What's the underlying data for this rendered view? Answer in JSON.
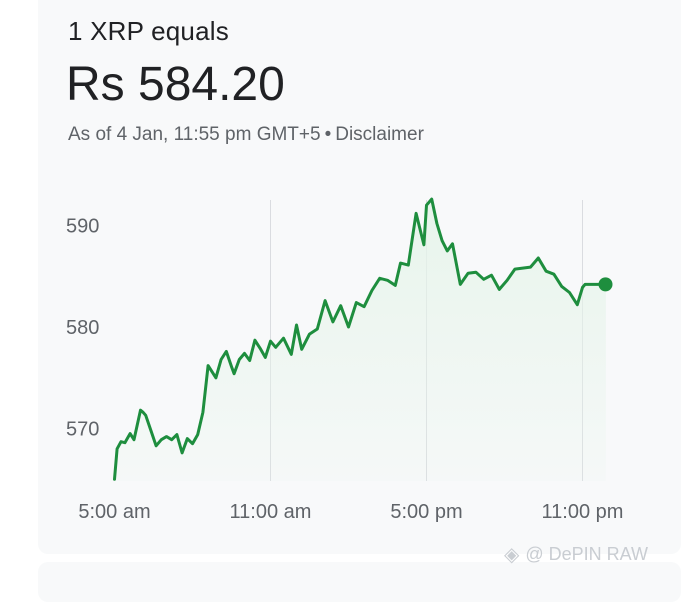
{
  "header": {
    "label": "1 XRP equals"
  },
  "price": {
    "value": "Rs 584.20"
  },
  "asof": {
    "text": "As of 4 Jan, 11:55 pm GMT+5",
    "separator": "•",
    "disclaimer": "Disclaimer"
  },
  "watermark": {
    "icon": "binance-logo-icon",
    "text": "@ DePIN RAW"
  },
  "colors": {
    "line": "#1e8e3e",
    "fill": "#e6f4ea",
    "grid": "#dadce0",
    "text": "#5f6368"
  },
  "chart_data": {
    "type": "line",
    "title": "",
    "xlabel": "",
    "ylabel": "",
    "x_ticks": [
      "5:00 am",
      "11:00 am",
      "5:00 pm",
      "11:00 pm"
    ],
    "y_ticks": [
      570,
      580,
      590
    ],
    "ylim": [
      564.9,
      592.8
    ],
    "x_range_hours": [
      5,
      23.9
    ],
    "series": [
      {
        "x": [
          5.0,
          5.1,
          5.25,
          5.4,
          5.6,
          5.75,
          6.0,
          6.1,
          6.2,
          6.4,
          6.6,
          6.8,
          7.0,
          7.2,
          7.4,
          7.6,
          7.8,
          8.0,
          8.2,
          8.4,
          8.6,
          8.9,
          9.1,
          9.3,
          9.5,
          9.6,
          9.8,
          10.0,
          10.2,
          10.4,
          10.6,
          10.8,
          11.0,
          11.2,
          11.5,
          11.8,
          12.0,
          12.2,
          12.5,
          12.8,
          13.1,
          13.4,
          13.7,
          14.0,
          14.3,
          14.6,
          14.9,
          15.2,
          15.5,
          15.8,
          16.0,
          16.3,
          16.6,
          16.9,
          17.0,
          17.2,
          17.4,
          17.6,
          17.8,
          18.0,
          18.3,
          18.6,
          18.9,
          19.2,
          19.5,
          19.8,
          20.1,
          20.4,
          20.7,
          21.0,
          21.3,
          21.6,
          21.9,
          22.2,
          22.5,
          22.8,
          23.0,
          23.1,
          23.25,
          23.4,
          23.55,
          23.7,
          23.9
        ],
        "y": [
          565.0,
          568.0,
          568.7,
          568.6,
          569.5,
          568.9,
          571.8,
          571.6,
          571.3,
          569.8,
          568.3,
          568.9,
          569.2,
          568.9,
          569.4,
          567.6,
          569.0,
          568.5,
          569.4,
          571.6,
          576.2,
          575.0,
          576.8,
          577.6,
          576.1,
          575.4,
          576.8,
          577.4,
          576.7,
          578.7,
          577.9,
          577.0,
          578.6,
          578.0,
          578.9,
          577.3,
          580.2,
          577.8,
          579.3,
          579.8,
          582.6,
          580.5,
          582.1,
          580.0,
          582.4,
          582.0,
          583.6,
          584.8,
          584.6,
          584.1,
          586.3,
          586.1,
          591.2,
          588.1,
          592.0,
          592.6,
          590.2,
          588.5,
          587.5,
          588.2,
          584.2,
          585.3,
          585.4,
          584.7,
          585.1,
          583.7,
          584.6,
          585.7,
          585.8,
          585.9,
          586.8,
          585.5,
          585.2,
          584.0,
          583.4,
          582.2,
          583.9,
          584.2,
          584.2,
          584.2,
          584.2,
          584.2,
          584.2
        ]
      }
    ]
  }
}
